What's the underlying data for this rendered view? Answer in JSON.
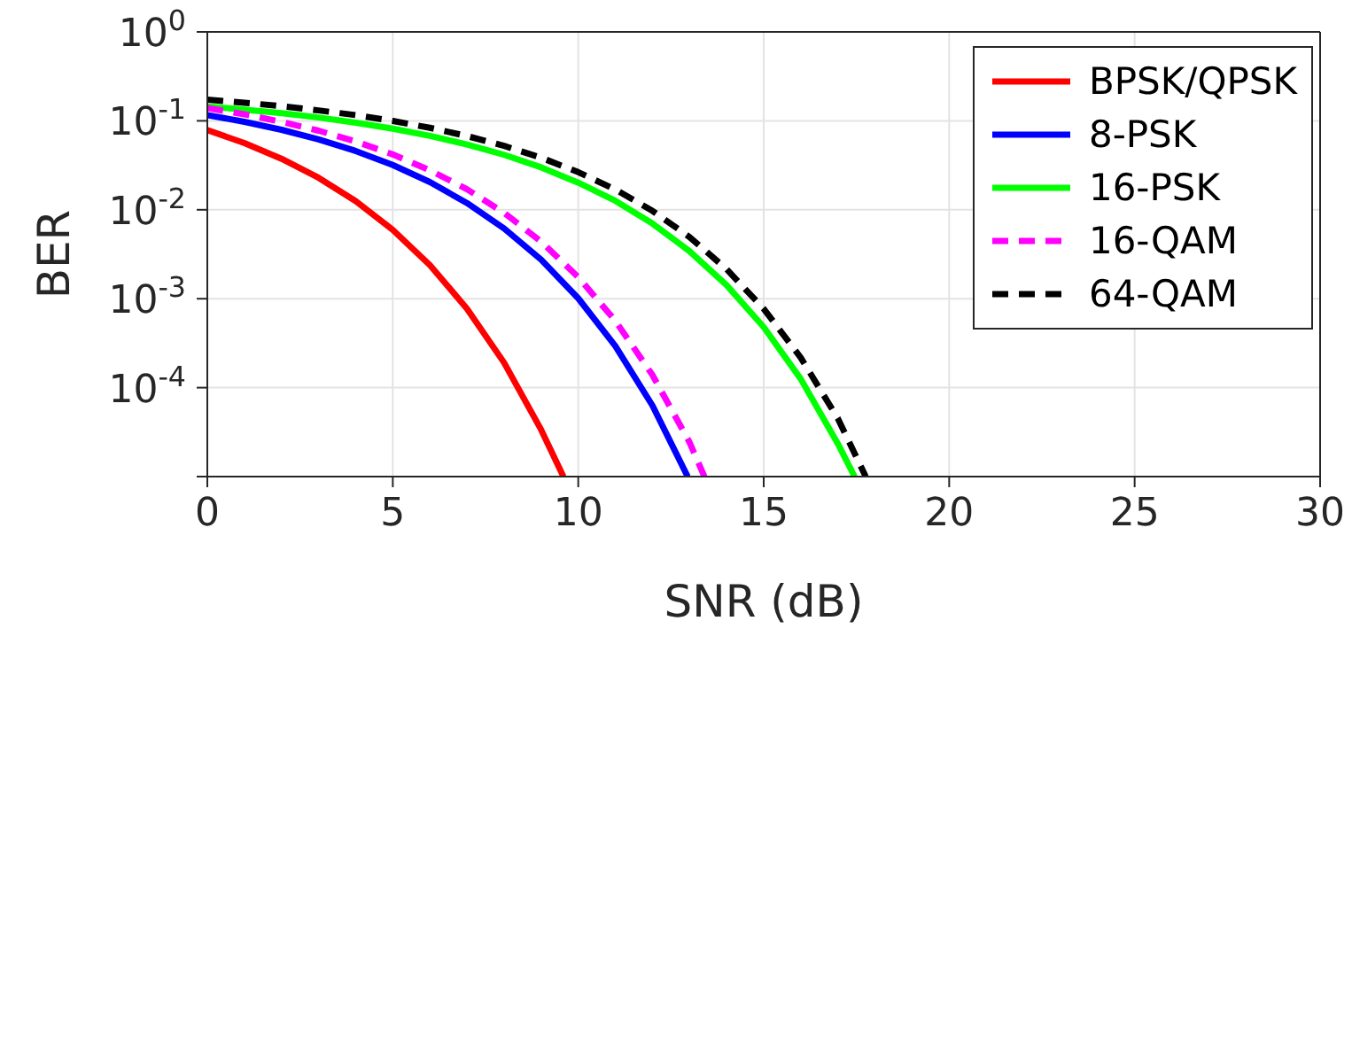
{
  "chart_data": {
    "type": "line",
    "xlabel": "SNR (dB)",
    "ylabel": "BER",
    "log": "y",
    "grid": true,
    "legend": "top right",
    "marker": "none",
    "xlim": [
      0,
      30
    ],
    "xticks": [
      0,
      5,
      10,
      15,
      20,
      25,
      30
    ],
    "ylim": [
      1e-05,
      1
    ],
    "yticks": [
      {
        "value": 1,
        "label": "10$^{0}$"
      },
      {
        "value": 0.1,
        "label": "10$^{-1}$"
      },
      {
        "value": 0.01,
        "label": "10$^{-2}$"
      },
      {
        "value": 0.001,
        "label": "10$^{-3}$"
      },
      {
        "value": 0.0001,
        "label": "10$^{-4}$"
      },
      {
        "value": 1e-05,
        "label": null
      }
    ],
    "series": [
      {
        "name": "BPSK/QPSK",
        "color": "#ff0000",
        "line_style": "solid",
        "x": [
          0,
          1,
          2,
          3,
          4,
          5,
          6,
          7,
          8,
          9,
          9.6
        ],
        "values": [
          0.0786,
          0.0563,
          0.0375,
          0.0229,
          0.0125,
          0.00595,
          0.00239,
          0.000773,
          0.000191,
          3.36e-05,
          1e-05
        ]
      },
      {
        "name": "8-PSK",
        "color": "#0000ff",
        "line_style": "solid",
        "x": [
          0,
          1,
          2,
          3,
          4,
          5,
          6,
          7,
          8,
          9,
          10,
          11,
          12,
          12.95
        ],
        "values": [
          0.116,
          0.0976,
          0.0793,
          0.0618,
          0.0458,
          0.0319,
          0.0205,
          0.0119,
          0.00617,
          0.00275,
          0.00101,
          0.000294,
          6.3e-05,
          1e-05
        ]
      },
      {
        "name": "16-PSK",
        "color": "#00ff00",
        "line_style": "solid",
        "x": [
          0,
          1,
          2,
          3,
          4,
          5,
          6,
          7,
          8,
          9,
          10,
          11,
          12,
          13,
          14,
          15,
          16,
          17,
          17.45
        ],
        "values": [
          0.145,
          0.134,
          0.122,
          0.109,
          0.0954,
          0.0816,
          0.0677,
          0.0542,
          0.0415,
          0.03,
          0.0202,
          0.0126,
          0.007,
          0.00342,
          0.00142,
          0.000479,
          0.000125,
          2.34e-05,
          1e-05
        ]
      },
      {
        "name": "16-QAM",
        "color": "#ff00ff",
        "line_style": "dashed",
        "x": [
          0,
          1,
          2,
          3,
          4,
          5,
          6,
          7,
          8,
          9,
          10,
          11,
          12,
          13,
          13.4
        ],
        "values": [
          0.139,
          0.1183,
          0.0975,
          0.0775,
          0.0586,
          0.0419,
          0.0278,
          0.017,
          0.00924,
          0.00439,
          0.00175,
          0.000564,
          0.000139,
          2.43e-05,
          1e-05
        ]
      },
      {
        "name": "64-QAM",
        "color": "#000000",
        "line_style": "dashed",
        "x": [
          0,
          1,
          2,
          3,
          4,
          5,
          6,
          7,
          8,
          9,
          10,
          11,
          12,
          13,
          14,
          15,
          16,
          17,
          17.75
        ],
        "values": [
          0.173,
          0.16,
          0.146,
          0.131,
          0.116,
          0.0997,
          0.0835,
          0.0675,
          0.0523,
          0.0385,
          0.0265,
          0.0169,
          0.00972,
          0.00494,
          0.00215,
          0.00077,
          0.000217,
          4.5e-05,
          1e-05
        ]
      }
    ]
  }
}
